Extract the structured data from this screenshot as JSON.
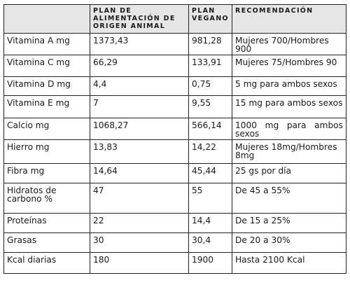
{
  "table": {
    "headers": [
      "",
      "PLAN DE ALIMENTACIÓN DE ORIGEN ANIMAL",
      "PLAN VEGANO",
      "RECOMENDACIÓN"
    ],
    "rows": [
      {
        "nutrient": "Vitamina A mg",
        "animal": "1373,43",
        "vegano": "981,28",
        "recomendacion": "Mujeres 700/Hombres 900"
      },
      {
        "nutrient": "Vitamina C mg",
        "animal": "66,29",
        "vegano": "133,91",
        "recomendacion": "Mujeres 75/Hombres 90"
      },
      {
        "nutrient": "Vitamina D mg",
        "animal": "4,4",
        "vegano": "0,75",
        "recomendacion": "5 mg para ambos sexos"
      },
      {
        "nutrient": "Vitamina E mg",
        "animal": "7",
        "vegano": "9,55",
        "recomendacion": "15 mg para ambos sexos"
      },
      {
        "nutrient": "Calcio mg",
        "animal": "1068,27",
        "vegano": "566,14",
        "recomendacion": "1000 mg para ambos sexos"
      },
      {
        "nutrient": "Hierro mg",
        "animal": "13,83",
        "vegano": "14,22",
        "recomendacion": "Mujeres 18mg/Hombres 8mg"
      },
      {
        "nutrient": "Fibra mg",
        "animal": "14,64",
        "vegano": "45,44",
        "recomendacion": "25 gs por día"
      },
      {
        "nutrient": "Hidratos de carbono %",
        "animal": "47",
        "vegano": "55",
        "recomendacion": "De 45 a 55%"
      },
      {
        "nutrient": "Proteínas",
        "animal": "22",
        "vegano": "14,4",
        "recomendacion": "De 15 a 25%"
      },
      {
        "nutrient": "Grasas",
        "animal": "30",
        "vegano": "30,4",
        "recomendacion": "De 20 a 30%"
      },
      {
        "nutrient": "Kcal diarias",
        "animal": "180",
        "vegano": "1900",
        "recomendacion": "Hasta 2100 Kcal"
      }
    ]
  }
}
